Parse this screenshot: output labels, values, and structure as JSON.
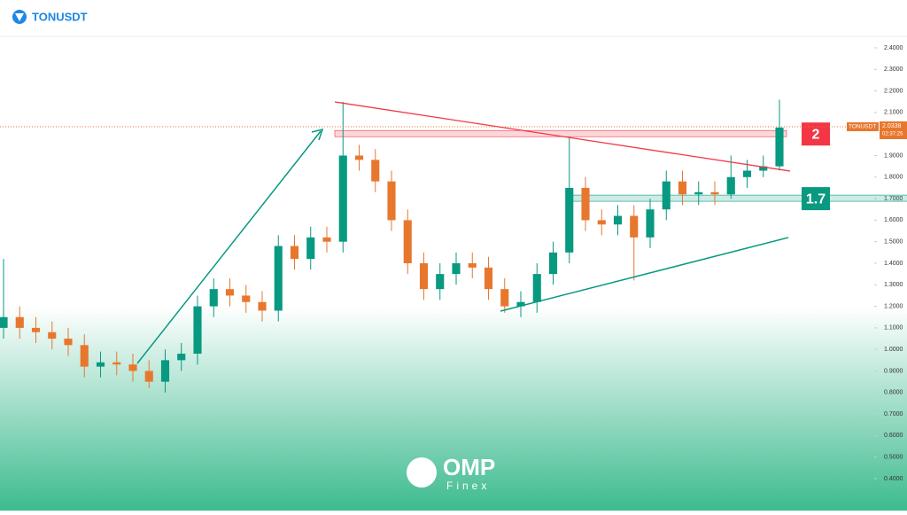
{
  "header": {
    "title": "TONUSDT"
  },
  "chart_data": {
    "type": "candlestick",
    "open": [
      1.1,
      1.15,
      1.1,
      1.08,
      1.05,
      1.02,
      0.92,
      0.94,
      0.93,
      0.9,
      0.85,
      0.95,
      0.98,
      1.2,
      1.28,
      1.25,
      1.22,
      1.18,
      1.48,
      1.42,
      1.52,
      1.5,
      1.9,
      1.88,
      1.78,
      1.6,
      1.4,
      1.28,
      1.35,
      1.4,
      1.38,
      1.28,
      1.2,
      1.22,
      1.35,
      1.45,
      1.75,
      1.6,
      1.58,
      1.62,
      1.52,
      1.65,
      1.78,
      1.72,
      1.73,
      1.72,
      1.8,
      1.83,
      1.85
    ],
    "high": [
      1.42,
      1.2,
      1.15,
      1.13,
      1.1,
      1.07,
      0.99,
      0.99,
      0.98,
      0.95,
      1.0,
      1.03,
      1.25,
      1.33,
      1.33,
      1.3,
      1.27,
      1.53,
      1.53,
      1.57,
      1.57,
      2.15,
      1.95,
      1.93,
      1.83,
      1.65,
      1.45,
      1.4,
      1.45,
      1.45,
      1.43,
      1.33,
      1.27,
      1.4,
      1.5,
      1.98,
      1.8,
      1.65,
      1.67,
      1.67,
      1.7,
      1.83,
      1.83,
      1.78,
      1.78,
      1.9,
      1.88,
      1.9,
      2.16
    ],
    "low": [
      1.05,
      1.05,
      1.03,
      1.0,
      0.97,
      0.87,
      0.87,
      0.88,
      0.85,
      0.82,
      0.8,
      0.9,
      0.93,
      1.15,
      1.2,
      1.17,
      1.13,
      1.13,
      1.37,
      1.37,
      1.45,
      1.45,
      1.83,
      1.73,
      1.55,
      1.35,
      1.23,
      1.23,
      1.3,
      1.33,
      1.23,
      1.17,
      1.15,
      1.17,
      1.3,
      1.4,
      1.55,
      1.53,
      1.53,
      1.32,
      1.47,
      1.6,
      1.67,
      1.67,
      1.67,
      1.7,
      1.75,
      1.8,
      1.83
    ],
    "close": [
      1.15,
      1.1,
      1.08,
      1.05,
      1.02,
      0.92,
      0.94,
      0.93,
      0.9,
      0.85,
      0.95,
      0.98,
      1.2,
      1.28,
      1.25,
      1.22,
      1.18,
      1.48,
      1.42,
      1.52,
      1.5,
      1.9,
      1.88,
      1.78,
      1.6,
      1.4,
      1.28,
      1.35,
      1.4,
      1.38,
      1.28,
      1.2,
      1.22,
      1.35,
      1.45,
      1.75,
      1.6,
      1.58,
      1.62,
      1.52,
      1.65,
      1.78,
      1.72,
      1.73,
      1.72,
      1.8,
      1.83,
      1.85,
      2.03
    ],
    "up_color": "#089981",
    "down_color": "#e8772e",
    "ylim": [
      0.4,
      2.4
    ],
    "yticks": [
      {
        "value": 2.4,
        "label": "2.4000"
      },
      {
        "value": 2.3,
        "label": "2.3000"
      },
      {
        "value": 2.2,
        "label": "2.2000"
      },
      {
        "value": 2.1,
        "label": "2.1000"
      },
      {
        "value": 1.9,
        "label": "1.9000"
      },
      {
        "value": 1.8,
        "label": "1.8000"
      },
      {
        "value": 1.7,
        "label": "1.7000"
      },
      {
        "value": 1.6,
        "label": "1.6000"
      },
      {
        "value": 1.5,
        "label": "1.5000"
      },
      {
        "value": 1.4,
        "label": "1.4000"
      },
      {
        "value": 1.3,
        "label": "1.3000"
      },
      {
        "value": 1.2,
        "label": "1.2000"
      },
      {
        "value": 1.1,
        "label": "1.1000"
      },
      {
        "value": 1.0,
        "label": "1.0000"
      },
      {
        "value": 0.9,
        "label": "0.9000"
      },
      {
        "value": 0.8,
        "label": "0.8000"
      },
      {
        "value": 0.7,
        "label": "0.7000"
      },
      {
        "value": 0.6,
        "label": "0.6000"
      },
      {
        "value": 0.5,
        "label": "0.5000"
      },
      {
        "value": 0.4,
        "label": "0.4000"
      }
    ],
    "last_price": {
      "value": 2.0338,
      "label": "2.0338",
      "symbol": "TONUSDT",
      "countdown": "02:37:25"
    },
    "levels": [
      {
        "value": 2,
        "label": "2"
      },
      {
        "value": 1.7,
        "label": "1.7"
      }
    ]
  },
  "logo": {
    "name": "OMP",
    "sub": "Finex"
  }
}
